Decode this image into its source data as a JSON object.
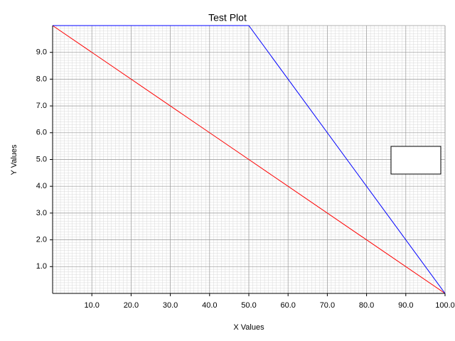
{
  "chart_data": {
    "type": "line",
    "title": "Test Plot",
    "x_label": "X Values",
    "y_label": "Y Values",
    "x": [
      0,
      50,
      100
    ],
    "series": [
      {
        "color": "#ff0000",
        "values": [
          10,
          5,
          0
        ]
      },
      {
        "color": "#0000ff",
        "values": [
          10,
          10,
          0
        ]
      }
    ],
    "xlim": [
      0,
      100
    ],
    "xticks": [
      {
        "value": 10,
        "label": "10.0"
      },
      {
        "value": 20,
        "label": "20.0"
      },
      {
        "value": 30,
        "label": "30.0"
      },
      {
        "value": 40,
        "label": "40.0"
      },
      {
        "value": 50,
        "label": "50.0"
      },
      {
        "value": 60,
        "label": "60.0"
      },
      {
        "value": 70,
        "label": "70.0"
      },
      {
        "value": 80,
        "label": "80.0"
      },
      {
        "value": 90,
        "label": "90.0"
      },
      {
        "value": 100,
        "label": "100.0"
      }
    ],
    "ylim": [
      0,
      10
    ],
    "yticks": [
      {
        "value": 1,
        "label": "1.0"
      },
      {
        "value": 2,
        "label": "2.0"
      },
      {
        "value": 3,
        "label": "3.0"
      },
      {
        "value": 4,
        "label": "4.0"
      },
      {
        "value": 5,
        "label": "5.0"
      },
      {
        "value": 6,
        "label": "6.0"
      },
      {
        "value": 7,
        "label": "7.0"
      },
      {
        "value": 8,
        "label": "8.0"
      },
      {
        "value": 9,
        "label": "9.0"
      }
    ],
    "grid": true,
    "minor_grid": 10
  }
}
